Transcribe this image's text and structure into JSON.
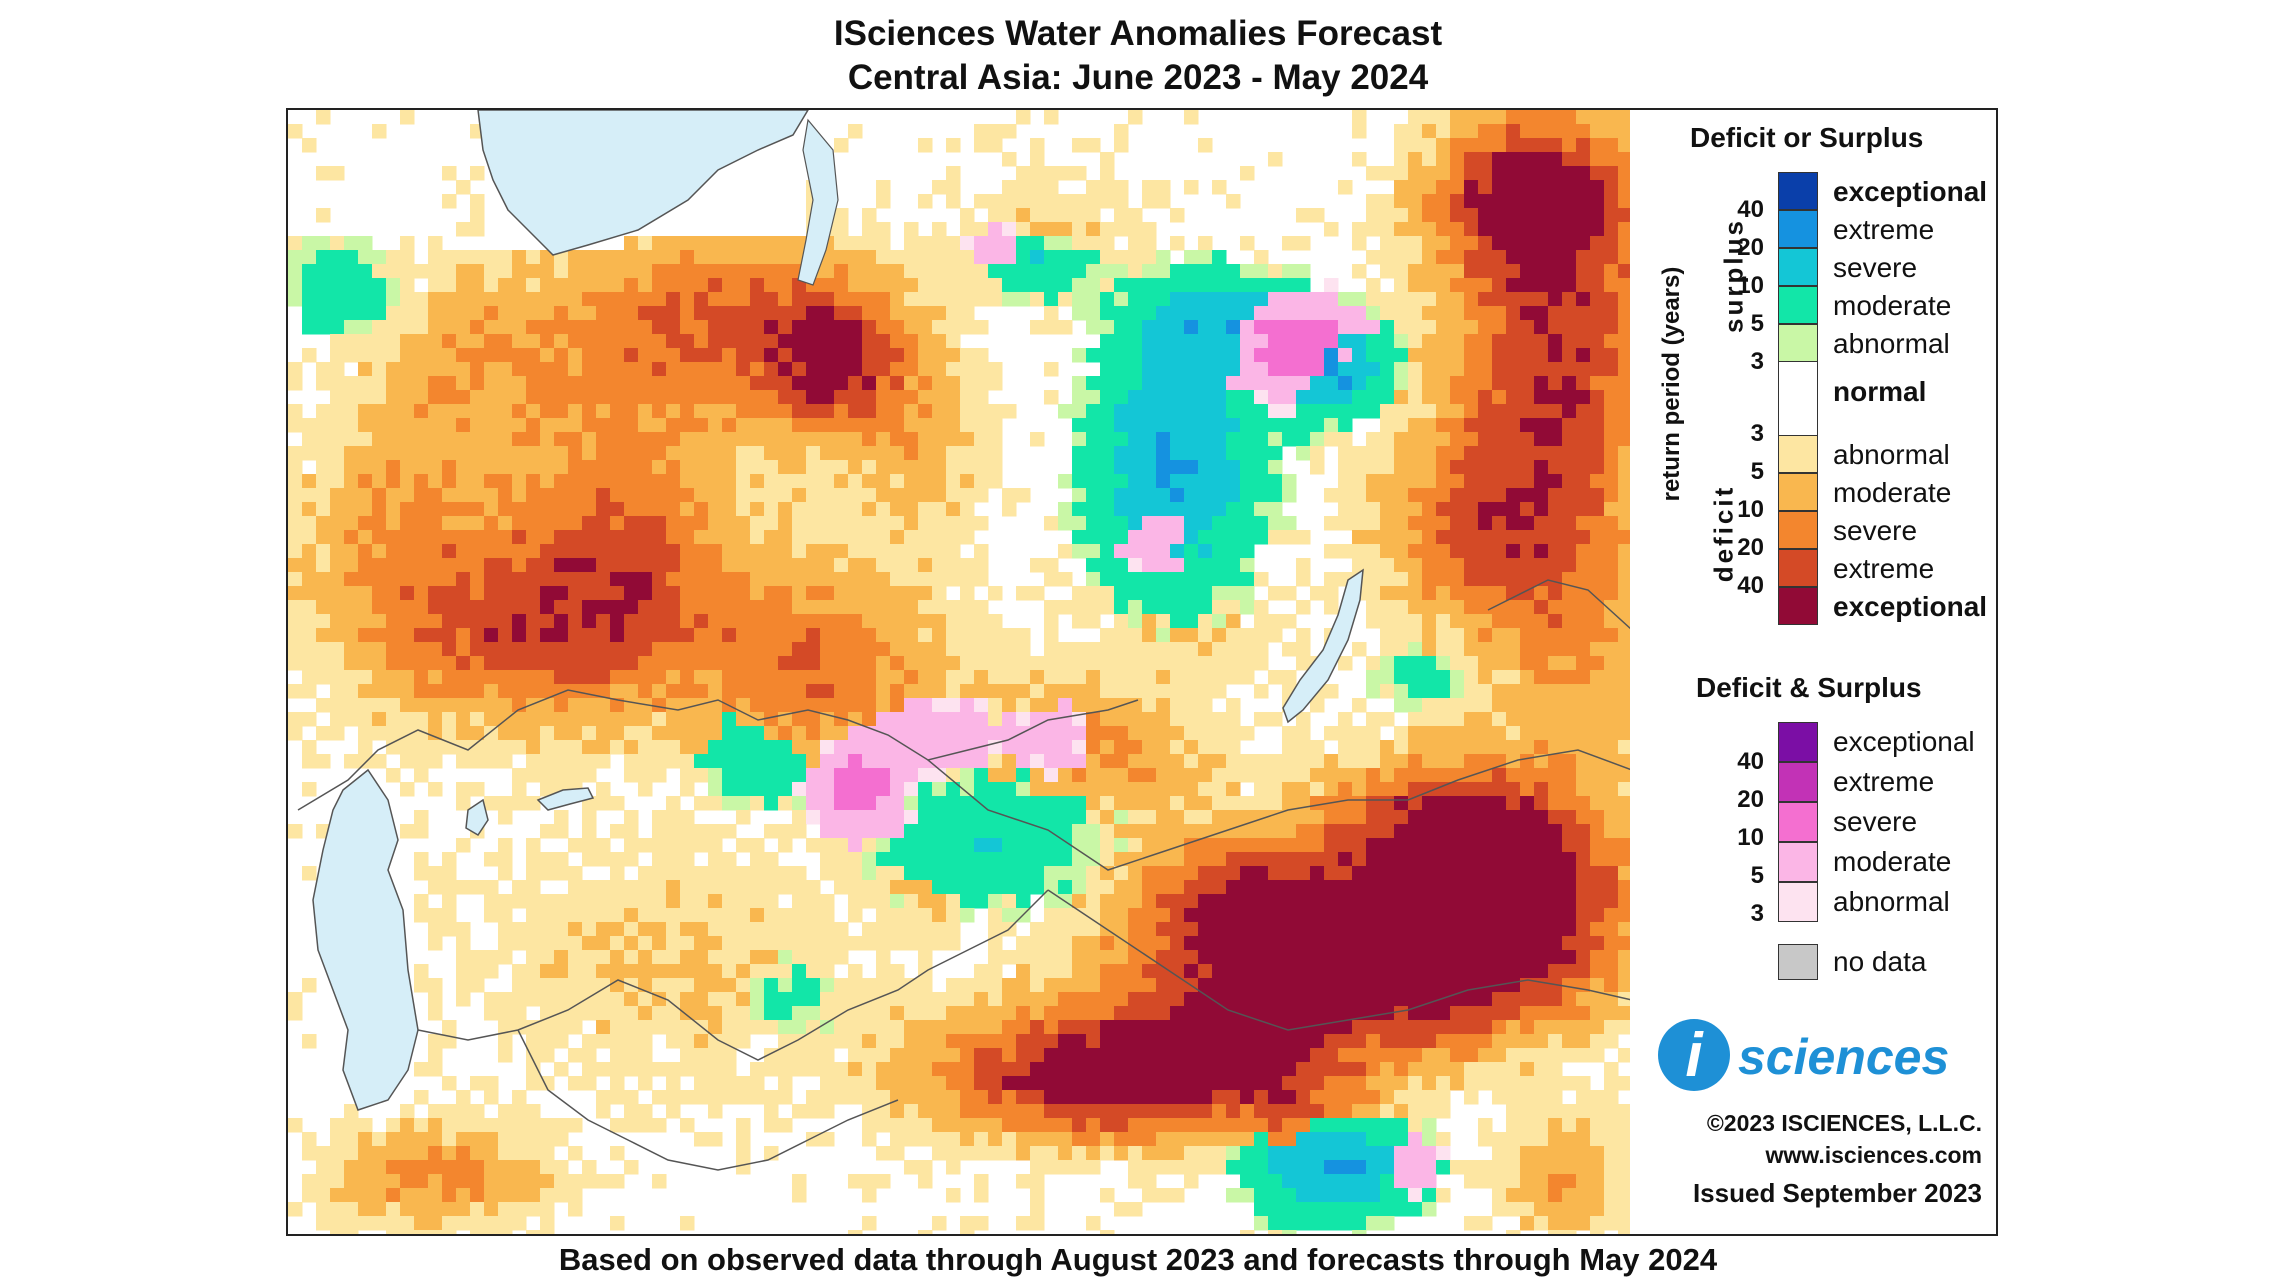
{
  "title": {
    "line1": "ISciences Water Anomalies Forecast",
    "line2": "Central Asia: June 2023 - May 2024"
  },
  "footer": "Based on observed data through August 2023 and forecasts through May 2024",
  "legend": {
    "section1_title": "Deficit or Surplus",
    "axis_label": "return period (years)",
    "surplus_label": "surplus",
    "deficit_label": "deficit",
    "surplus_ticks": [
      "40",
      "20",
      "10",
      "5",
      "3"
    ],
    "deficit_ticks": [
      "3",
      "5",
      "10",
      "20",
      "40"
    ],
    "classes": [
      {
        "label": "exceptional",
        "color": "#0a3faa"
      },
      {
        "label": "extreme",
        "color": "#1592e0"
      },
      {
        "label": "severe",
        "color": "#14c6d6"
      },
      {
        "label": "moderate",
        "color": "#12e6a8"
      },
      {
        "label": "abnormal",
        "color": "#c9f7a6"
      },
      {
        "label": "normal",
        "color": "#ffffff"
      },
      {
        "label": "abnormal",
        "color": "#fde6a2"
      },
      {
        "label": "moderate",
        "color": "#f9b74f"
      },
      {
        "label": "severe",
        "color": "#f3862e"
      },
      {
        "label": "extreme",
        "color": "#d44a26"
      },
      {
        "label": "exceptional",
        "color": "#910a36"
      }
    ],
    "section2_title": "Deficit & Surplus",
    "both_ticks": [
      "40",
      "20",
      "10",
      "5",
      "3"
    ],
    "both_classes": [
      {
        "label": "exceptional",
        "color": "#7b0ea5"
      },
      {
        "label": "extreme",
        "color": "#c232b6"
      },
      {
        "label": "severe",
        "color": "#f46fd0"
      },
      {
        "label": "moderate",
        "color": "#fbb6e6"
      },
      {
        "label": "abnormal",
        "color": "#fde3f0"
      }
    ],
    "nodata_label": "no data",
    "nodata_color": "#c8c8c8"
  },
  "logo": {
    "letter": "i",
    "text": "sciences",
    "color": "#1e90d6"
  },
  "copyright": "©2023 ISCIENCES, L.L.C.",
  "website": "www.isciences.com",
  "issued": "Issued September 2023",
  "map": {
    "water_color": "#d6eef8",
    "border_color": "#555555"
  }
}
